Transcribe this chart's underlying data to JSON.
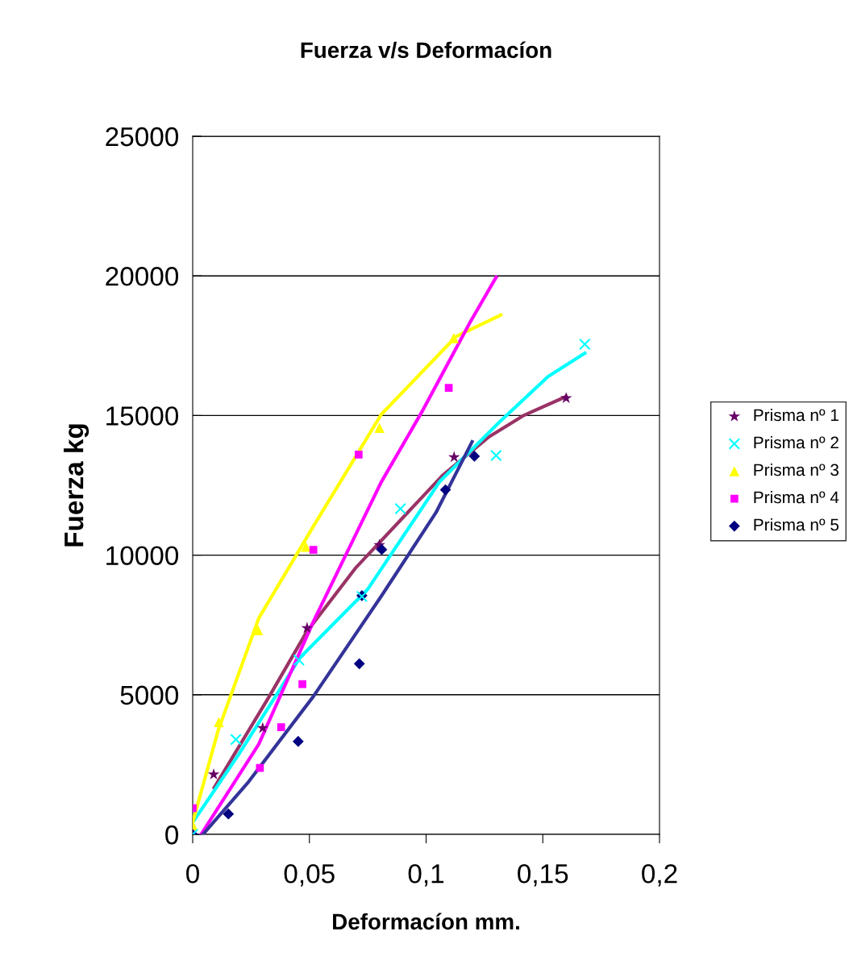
{
  "chart_data": {
    "type": "scatter",
    "title": "Fuerza v/s Deformacíon",
    "xlabel": "Deformacíon mm.",
    "ylabel": "Fuerza kg",
    "xlim": [
      0,
      0.2
    ],
    "ylim": [
      0,
      25000
    ],
    "xticks": [
      0,
      {
        "value": 0.05,
        "label": "0,05"
      },
      {
        "value": 0.1,
        "label": "0,1"
      },
      {
        "value": 0.15,
        "label": "0,15"
      },
      {
        "value": 0.2,
        "label": "0,2"
      }
    ],
    "yticks": [
      0,
      5000,
      10000,
      15000,
      20000,
      25000
    ],
    "grid": "y",
    "legend": "right",
    "series": [
      {
        "name": "Prisma nº 1",
        "marker": "star",
        "color": "#660066",
        "x": [
          0.009,
          0.03,
          0.049,
          0.08,
          0.112,
          0.16
        ],
        "values": [
          2150,
          3810,
          7390,
          10360,
          13510,
          15620
        ]
      },
      {
        "name": "Prisma nº 2",
        "marker": "cross",
        "color": "#00ffff",
        "x": [
          0,
          0.0185,
          0.0455,
          0.0725,
          0.089,
          0.13,
          0.168
        ],
        "values": [
          0,
          3400,
          6240,
          8520,
          11660,
          13570,
          17550
        ]
      },
      {
        "name": "Prisma nº 3",
        "marker": "triangle",
        "color": "#ffff00",
        "x": [
          0,
          0.0112,
          0.028,
          0.0485,
          0.08,
          0.1118
        ],
        "values": [
          330,
          4020,
          7310,
          10300,
          14560,
          17770
        ]
      },
      {
        "name": "Prisma nº 4",
        "marker": "square",
        "color": "#ff00ff",
        "x": [
          0,
          0.0288,
          0.0379,
          0.047,
          0.0517,
          0.0711,
          0.1097
        ],
        "values": [
          940,
          2380,
          3840,
          5380,
          10190,
          13600,
          15990
        ]
      },
      {
        "name": "Prisma nº 5",
        "marker": "diamond",
        "color": "#000080",
        "x": [
          0,
          0.0153,
          0.0452,
          0.0714,
          0.0725,
          0.081,
          0.1083,
          0.1207
        ],
        "values": [
          0,
          730,
          3330,
          6110,
          8550,
          10200,
          12340,
          13540
        ]
      },
      {
        "type": "line",
        "color": "#993366",
        "x": [
          0.0092,
          0.0328,
          0.0488,
          0.07,
          0.107,
          0.127,
          0.142,
          0.16
        ],
        "values": [
          1670,
          4940,
          7250,
          9560,
          12850,
          14240,
          15010,
          15680
        ]
      },
      {
        "type": "line",
        "color": "#00ffff",
        "x": [
          0,
          0.0197,
          0.046,
          0.075,
          0.1057,
          0.1316,
          0.1523,
          0.168
        ],
        "values": [
          430,
          2860,
          6330,
          8780,
          12620,
          14780,
          16400,
          17230
        ]
      },
      {
        "type": "line",
        "color": "#ffff00",
        "x": [
          0,
          0.0109,
          0.0283,
          0.0517,
          0.0808,
          0.113,
          0.132
        ],
        "values": [
          430,
          3720,
          7740,
          11030,
          15040,
          17840,
          18600
        ]
      },
      {
        "type": "line",
        "color": "#ff00ff",
        "x": [
          0.0036,
          0.0283,
          0.0517,
          0.0808,
          0.0984,
          0.1188,
          0.13
        ],
        "values": [
          0,
          3230,
          7620,
          12620,
          15160,
          18330,
          19950
        ]
      },
      {
        "type": "line",
        "color": "#333399",
        "x": [
          0.0044,
          0.024,
          0.0517,
          0.0808,
          0.1042,
          0.1197
        ],
        "values": [
          0,
          1890,
          4940,
          8530,
          11520,
          14060
        ]
      }
    ]
  }
}
